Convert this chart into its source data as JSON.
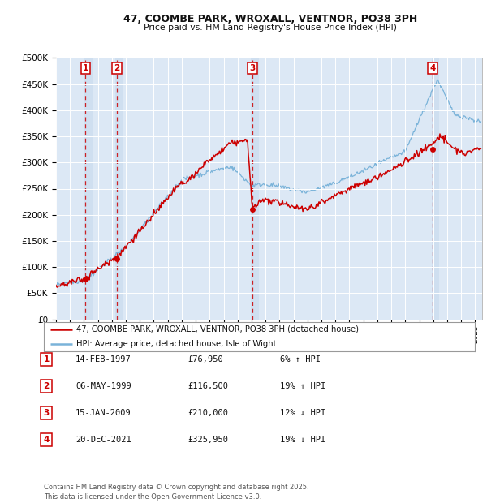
{
  "title1": "47, COOMBE PARK, WROXALL, VENTNOR, PO38 3PH",
  "title2": "Price paid vs. HM Land Registry's House Price Index (HPI)",
  "background_color": "#ffffff",
  "plot_bg_color": "#dce8f5",
  "grid_color": "#ffffff",
  "red_line_color": "#cc0000",
  "blue_line_color": "#7ab3d9",
  "sale_dates": [
    1997.12,
    1999.35,
    2009.04,
    2021.97
  ],
  "sale_prices": [
    76950,
    116500,
    210000,
    325950
  ],
  "sale_labels": [
    "1",
    "2",
    "3",
    "4"
  ],
  "table_rows": [
    {
      "num": "1",
      "date": "14-FEB-1997",
      "price": "£76,950",
      "pct": "6% ↑ HPI"
    },
    {
      "num": "2",
      "date": "06-MAY-1999",
      "price": "£116,500",
      "pct": "19% ↑ HPI"
    },
    {
      "num": "3",
      "date": "15-JAN-2009",
      "price": "£210,000",
      "pct": "12% ↓ HPI"
    },
    {
      "num": "4",
      "date": "20-DEC-2021",
      "price": "£325,950",
      "pct": "19% ↓ HPI"
    }
  ],
  "legend_line1": "47, COOMBE PARK, WROXALL, VENTNOR, PO38 3PH (detached house)",
  "legend_line2": "HPI: Average price, detached house, Isle of Wight",
  "footer": "Contains HM Land Registry data © Crown copyright and database right 2025.\nThis data is licensed under the Open Government Licence v3.0.",
  "ylim": [
    0,
    500000
  ],
  "yticks": [
    0,
    50000,
    100000,
    150000,
    200000,
    250000,
    300000,
    350000,
    400000,
    450000,
    500000
  ],
  "xmin": 1995.0,
  "xmax": 2025.5
}
